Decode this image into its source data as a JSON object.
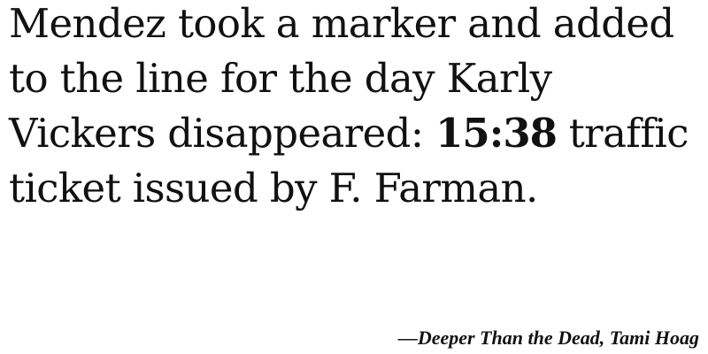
{
  "quote": {
    "before": "Mendez took a marker and added to the line for the day Karly Vickers disappeared: ",
    "highlight": "15:38",
    "after": " traffic ticket issued by F. Farman."
  },
  "attribution": {
    "dash": "—",
    "title": "Deeper Than the Dead",
    "separator": ", ",
    "author": "Tami Hoag"
  }
}
